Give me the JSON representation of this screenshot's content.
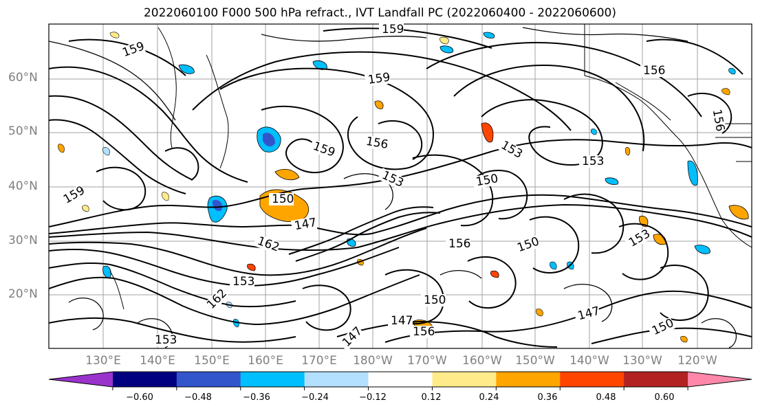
{
  "title": "2022060100 F000 500 hPa refract., IVT Landfall PC (2022060400 - 2022060600)",
  "lat_labels": [
    "60°N",
    "50°N",
    "40°N",
    "30°N",
    "20°N"
  ],
  "lon_labels": [
    "130°E",
    "140°E",
    "150°E",
    "160°E",
    "170°E",
    "180°W",
    "170°W",
    "160°W",
    "150°W",
    "140°W",
    "130°W",
    "120°W"
  ],
  "contour_labels": [
    "159",
    "159",
    "159",
    "156",
    "159",
    "156",
    "153",
    "150",
    "150",
    "153",
    "153",
    "156",
    "150",
    "162",
    "156",
    "147",
    "153",
    "150",
    "147",
    "147",
    "156",
    "147",
    "150",
    "153",
    "159",
    "162",
    "153"
  ],
  "colorbar": {
    "colors": [
      "#9933cc",
      "#000080",
      "#3355cc",
      "#00bfff",
      "#b3e0ff",
      "#ffffff",
      "#ffeb8a",
      "#ffa500",
      "#ff4500",
      "#b22222",
      "#ff88aa"
    ],
    "ticks": [
      "−0.60",
      "−0.48",
      "−0.36",
      "−0.24",
      "−0.12",
      "0.12",
      "0.24",
      "0.36",
      "0.48",
      "0.60"
    ]
  }
}
